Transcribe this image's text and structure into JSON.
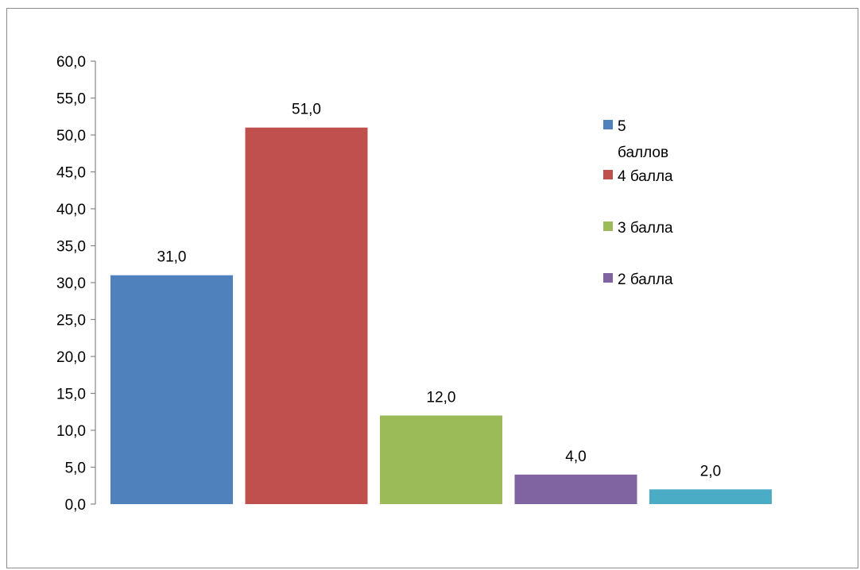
{
  "chart_data": {
    "type": "bar",
    "categories": [
      "5 баллов",
      "4 балла",
      "3 балла",
      "2 балла",
      ""
    ],
    "values": [
      31.0,
      51.0,
      12.0,
      4.0,
      2.0
    ],
    "value_labels": [
      "31,0",
      "51,0",
      "12,0",
      "4,0",
      "2,0"
    ],
    "colors": [
      "#4F81BD",
      "#C0504D",
      "#9BBB59",
      "#8064A2",
      "#4BACC6"
    ],
    "ylim": [
      0,
      60
    ],
    "y_ticks": [
      "0,0",
      "5,0",
      "10,0",
      "15,0",
      "20,0",
      "25,0",
      "30,0",
      "35,0",
      "40,0",
      "45,0",
      "50,0",
      "55,0",
      "60,0"
    ],
    "grid": false,
    "legend": {
      "placement": "right",
      "entries": [
        {
          "lines": [
            "5",
            "баллов"
          ],
          "color": "#4F81BD"
        },
        {
          "lines": [
            "4 балла"
          ],
          "color": "#C0504D"
        },
        {
          "lines": [
            "3 балла"
          ],
          "color": "#9BBB59"
        },
        {
          "lines": [
            "2 балла"
          ],
          "color": "#8064A2"
        }
      ]
    }
  }
}
